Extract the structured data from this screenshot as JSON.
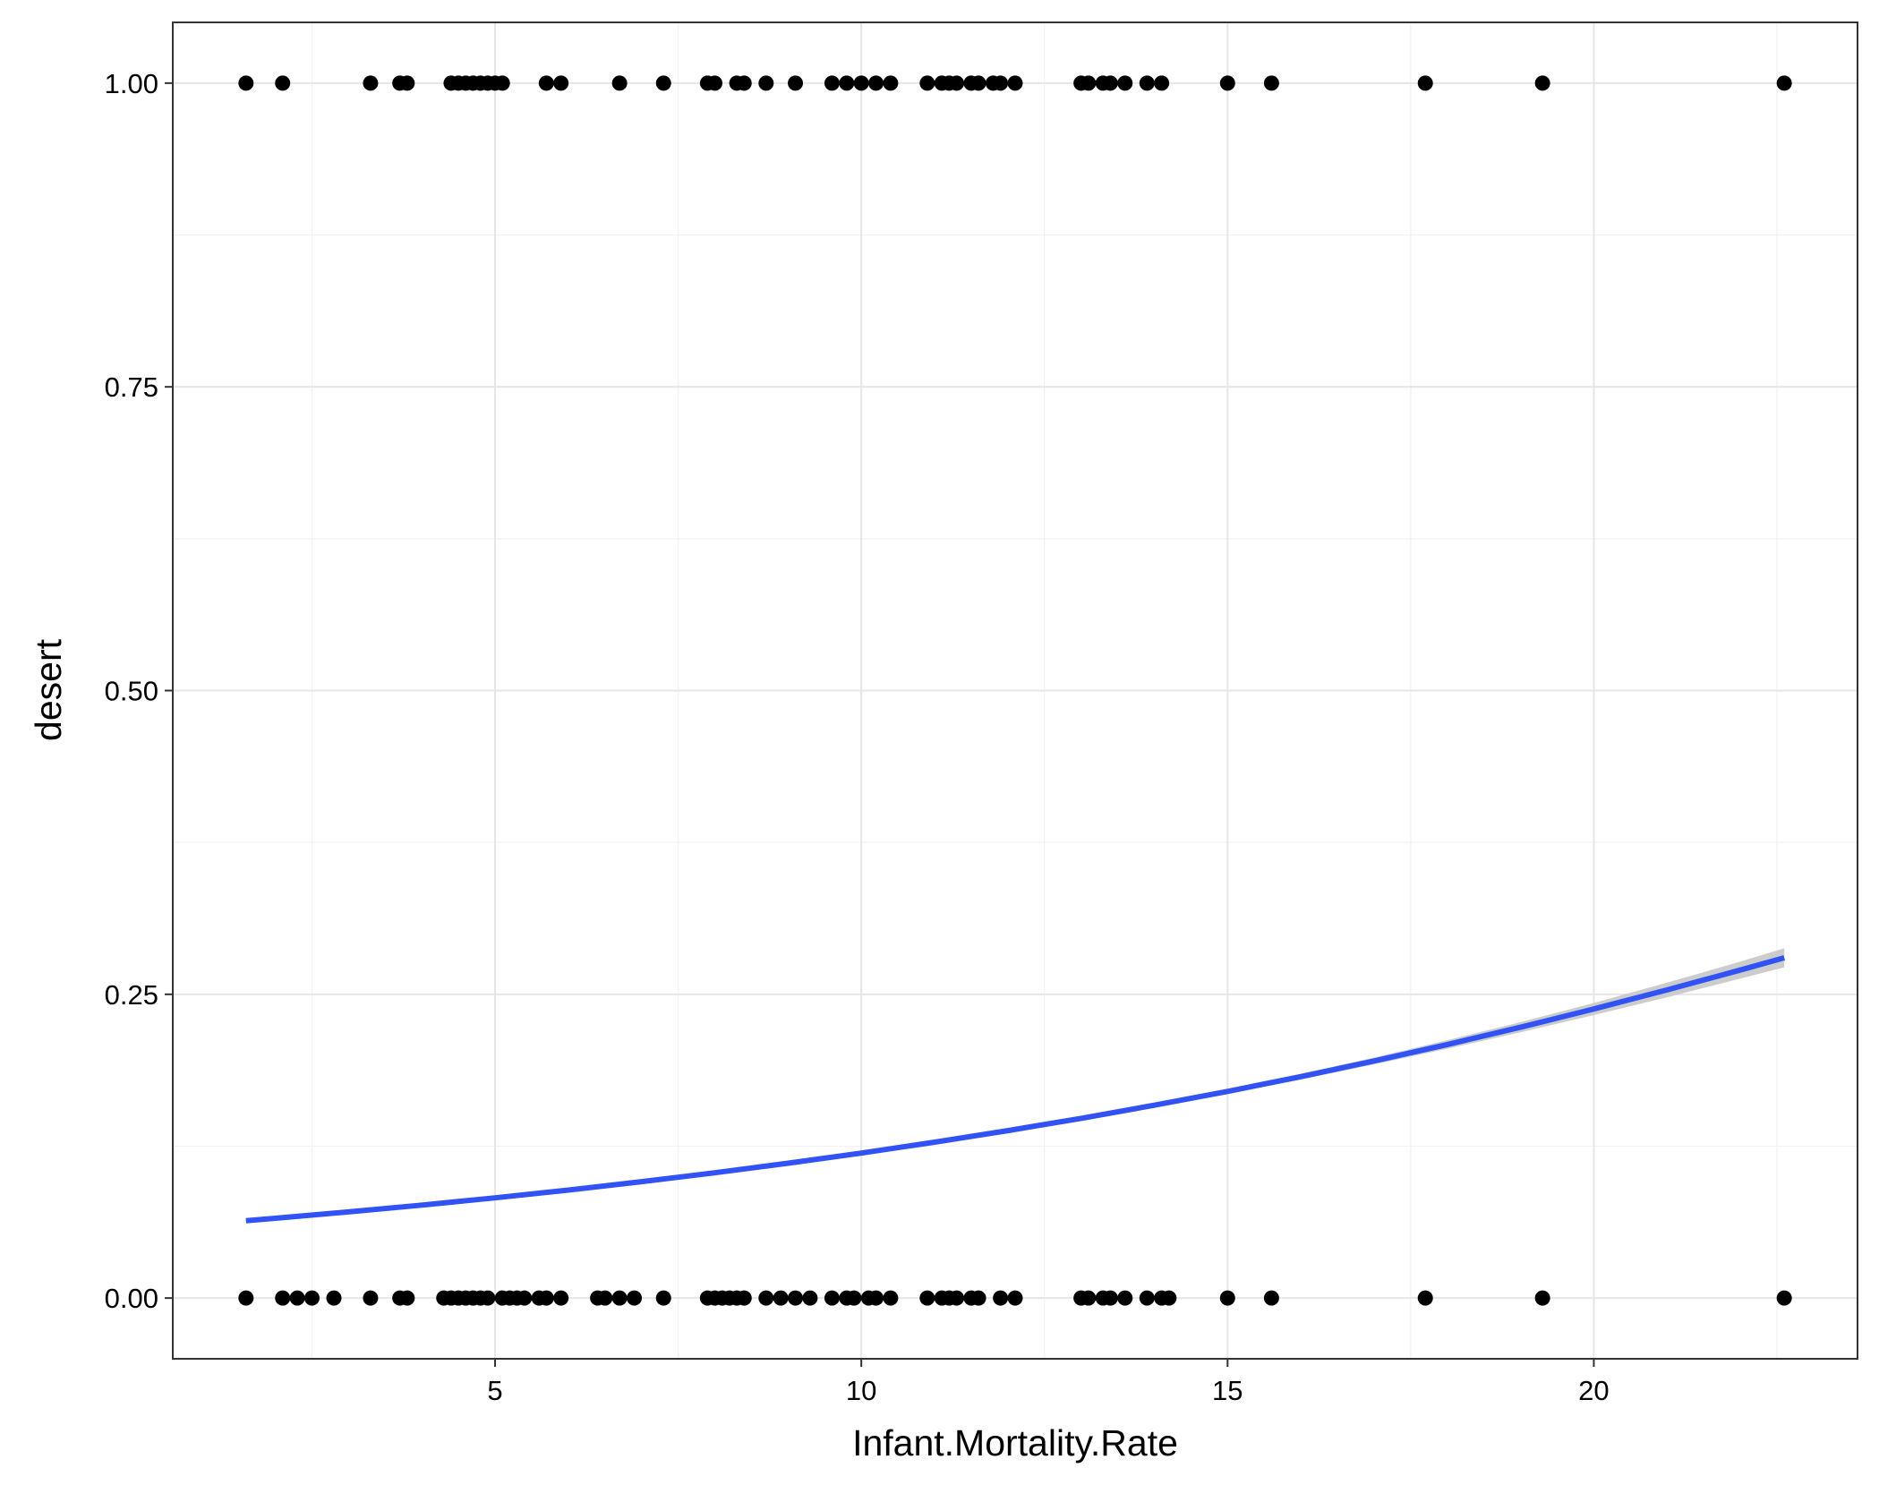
{
  "chart_data": {
    "type": "scatter",
    "title": "",
    "xlabel": "Infant.Mortality.Rate",
    "ylabel": "desert",
    "xlim": [
      0.6,
      23.6
    ],
    "ylim": [
      -0.05,
      1.05
    ],
    "x_ticks": [
      5,
      10,
      15,
      20
    ],
    "x_tick_labels": [
      "5",
      "10",
      "15",
      "20"
    ],
    "y_ticks": [
      0,
      0.25,
      0.5,
      0.75,
      1
    ],
    "y_tick_labels": [
      "0.00",
      "0.25",
      "0.50",
      "0.75",
      "1.00"
    ],
    "grid": true,
    "legend": "none",
    "colors": {
      "points": "#000000",
      "fit_line": "#3152f5",
      "confidence_band": "#cccccc",
      "panel_border": "#333333",
      "grid_major": "#e6e6e6",
      "grid_minor": "#f2f2f2"
    },
    "series": [
      {
        "type": "points",
        "x": [
          1.6,
          2.1,
          3.3,
          3.7,
          3.8,
          4.4,
          4.5,
          4.6,
          4.7,
          4.8,
          4.9,
          5.0,
          5.1,
          5.7,
          5.9,
          6.7,
          7.3,
          7.9,
          8.0,
          8.3,
          8.4,
          8.7,
          9.1,
          9.6,
          9.8,
          10.0,
          10.2,
          10.4,
          10.9,
          11.1,
          11.2,
          11.3,
          11.5,
          11.6,
          11.8,
          11.9,
          12.1,
          13.0,
          13.1,
          13.3,
          13.4,
          13.6,
          13.9,
          14.1,
          15.0,
          15.6,
          17.7,
          19.3,
          22.6
        ],
        "y": [
          1,
          1,
          1,
          1,
          1,
          1,
          1,
          1,
          1,
          1,
          1,
          1,
          1,
          1,
          1,
          1,
          1,
          1,
          1,
          1,
          1,
          1,
          1,
          1,
          1,
          1,
          1,
          1,
          1,
          1,
          1,
          1,
          1,
          1,
          1,
          1,
          1,
          1,
          1,
          1,
          1,
          1,
          1,
          1,
          1,
          1,
          1,
          1,
          1
        ]
      },
      {
        "type": "points",
        "x": [
          1.6,
          2.1,
          2.3,
          2.5,
          2.8,
          3.3,
          3.7,
          3.8,
          4.3,
          4.4,
          4.5,
          4.6,
          4.7,
          4.8,
          4.9,
          5.1,
          5.2,
          5.3,
          5.4,
          5.6,
          5.7,
          5.9,
          6.4,
          6.5,
          6.7,
          6.9,
          7.3,
          7.9,
          8.0,
          8.1,
          8.2,
          8.3,
          8.4,
          8.7,
          8.9,
          9.1,
          9.3,
          9.6,
          9.8,
          9.9,
          10.1,
          10.2,
          10.4,
          10.9,
          11.1,
          11.2,
          11.3,
          11.5,
          11.6,
          11.9,
          12.1,
          13.0,
          13.1,
          13.3,
          13.4,
          13.6,
          13.9,
          14.1,
          14.2,
          15.0,
          15.6,
          17.7,
          19.3,
          22.6
        ],
        "y": [
          0,
          0,
          0,
          0,
          0,
          0,
          0,
          0,
          0,
          0,
          0,
          0,
          0,
          0,
          0,
          0,
          0,
          0,
          0,
          0,
          0,
          0,
          0,
          0,
          0,
          0,
          0,
          0,
          0,
          0,
          0,
          0,
          0,
          0,
          0,
          0,
          0,
          0,
          0,
          0,
          0,
          0,
          0,
          0,
          0,
          0,
          0,
          0,
          0,
          0,
          0,
          0,
          0,
          0,
          0,
          0,
          0,
          0,
          0,
          0,
          0,
          0,
          0,
          0
        ]
      },
      {
        "type": "line",
        "x": [
          1.6,
          2,
          3,
          4,
          5,
          6,
          7,
          8,
          9,
          10,
          11,
          12,
          13,
          14,
          15,
          16,
          17,
          18,
          19,
          20,
          21,
          22,
          22.6
        ],
        "y": [
          0.0637,
          0.0657,
          0.0709,
          0.0765,
          0.0825,
          0.0889,
          0.0958,
          0.1031,
          0.111,
          0.1193,
          0.1283,
          0.1378,
          0.1479,
          0.1587,
          0.1701,
          0.1822,
          0.1951,
          0.2087,
          0.2229,
          0.2379,
          0.2536,
          0.27,
          0.2801
        ],
        "lower": [
          0.0627,
          0.0647,
          0.0699,
          0.0755,
          0.0815,
          0.0879,
          0.0948,
          0.1021,
          0.11,
          0.1185,
          0.1275,
          0.1368,
          0.1465,
          0.157,
          0.168,
          0.1798,
          0.1923,
          0.2052,
          0.2187,
          0.2329,
          0.2476,
          0.263,
          0.2723
        ],
        "upper": [
          0.0647,
          0.0667,
          0.0719,
          0.0775,
          0.0835,
          0.0899,
          0.0968,
          0.1041,
          0.112,
          0.1201,
          0.1291,
          0.1388,
          0.1493,
          0.1604,
          0.1722,
          0.1846,
          0.1979,
          0.2122,
          0.2271,
          0.2429,
          0.2596,
          0.277,
          0.2879
        ]
      }
    ]
  }
}
